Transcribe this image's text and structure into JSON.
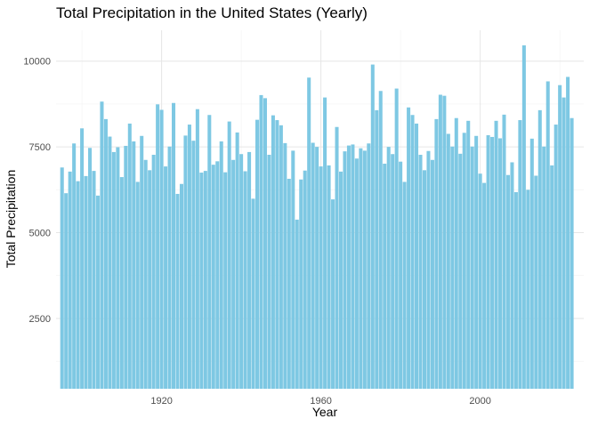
{
  "chart_data": {
    "type": "bar",
    "title": "Total Precipitation in the United States (Yearly)",
    "xlabel": "Year",
    "ylabel": "Total Precipitation",
    "bar_color": "#7ec8e3",
    "grid": true,
    "xticks": [
      1920,
      1960,
      2000
    ],
    "yticks": [
      2500,
      5000,
      7500,
      10000
    ],
    "xlim": [
      1893.5,
      2026
    ],
    "ylim": [
      450,
      10900
    ],
    "x": [
      1895,
      1896,
      1897,
      1898,
      1899,
      1900,
      1901,
      1902,
      1903,
      1904,
      1905,
      1906,
      1907,
      1908,
      1909,
      1910,
      1911,
      1912,
      1913,
      1914,
      1915,
      1916,
      1917,
      1918,
      1919,
      1920,
      1921,
      1922,
      1923,
      1924,
      1925,
      1926,
      1927,
      1928,
      1929,
      1930,
      1931,
      1932,
      1933,
      1934,
      1935,
      1936,
      1937,
      1938,
      1939,
      1940,
      1941,
      1942,
      1943,
      1944,
      1945,
      1946,
      1947,
      1948,
      1949,
      1950,
      1951,
      1952,
      1953,
      1954,
      1955,
      1956,
      1957,
      1958,
      1959,
      1960,
      1961,
      1962,
      1963,
      1964,
      1965,
      1966,
      1967,
      1968,
      1969,
      1970,
      1971,
      1972,
      1973,
      1974,
      1975,
      1976,
      1977,
      1978,
      1979,
      1980,
      1981,
      1982,
      1983,
      1984,
      1985,
      1986,
      1987,
      1988,
      1989,
      1990,
      1991,
      1992,
      1993,
      1994,
      1995,
      1996,
      1997,
      1998,
      1999,
      2000,
      2001,
      2002,
      2003,
      2004,
      2005,
      2006,
      2007,
      2008,
      2009,
      2010,
      2011,
      2012,
      2013,
      2014,
      2015,
      2016,
      2017,
      2018,
      2019,
      2020,
      2021,
      2022,
      2023
    ],
    "values": [
      6900,
      6150,
      6780,
      7600,
      6500,
      8040,
      6650,
      7470,
      6800,
      6080,
      8820,
      8310,
      7800,
      7350,
      7490,
      6620,
      7530,
      8180,
      7660,
      6480,
      7820,
      7120,
      6820,
      7270,
      8740,
      8580,
      6930,
      7510,
      8780,
      6130,
      6420,
      7830,
      8150,
      7680,
      8600,
      6750,
      6800,
      8430,
      6980,
      7080,
      7660,
      6760,
      8240,
      7120,
      7920,
      7290,
      6790,
      7350,
      5990,
      8290,
      9010,
      8920,
      7270,
      8420,
      8280,
      8130,
      7610,
      6570,
      7390,
      5380,
      6550,
      6810,
      9520,
      7620,
      7500,
      6930,
      8940,
      6960,
      5970,
      8080,
      6780,
      7370,
      7540,
      7570,
      7160,
      7460,
      7390,
      7600,
      9900,
      8570,
      9130,
      7010,
      7500,
      7290,
      9200,
      7070,
      6480,
      8650,
      8430,
      8180,
      7270,
      6820,
      7380,
      7120,
      8310,
      9020,
      8990,
      7880,
      7510,
      8340,
      7300,
      7910,
      8260,
      7510,
      7820,
      6720,
      6450,
      7840,
      7790,
      8260,
      7750,
      8440,
      6680,
      7050,
      6180,
      8280,
      10460,
      6250,
      7740,
      6660,
      8570,
      7510,
      9410,
      6960,
      8150,
      9300,
      8940,
      9540,
      8340
    ]
  }
}
